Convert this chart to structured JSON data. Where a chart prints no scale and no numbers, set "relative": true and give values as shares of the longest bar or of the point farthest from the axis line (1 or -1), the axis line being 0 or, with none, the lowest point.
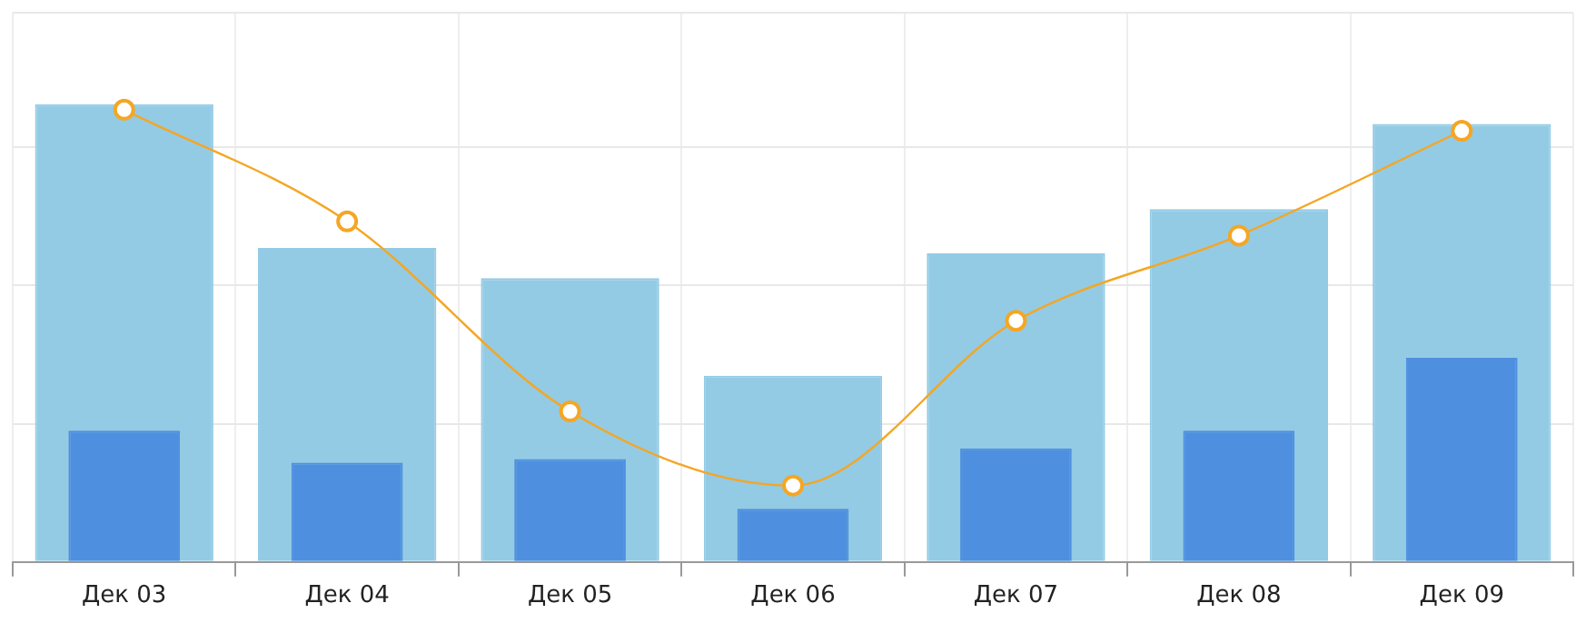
{
  "chart_data": {
    "type": "bar",
    "relative": true,
    "grid": true,
    "marker": "circle",
    "line_style": "solid",
    "categories": [
      "Дек 03",
      "Дек 04",
      "Дек 05",
      "Дек 06",
      "Дек 07",
      "Дек 08",
      "Дек 09"
    ],
    "series": [
      {
        "type": "line",
        "color": "#f5a623",
        "values": [
          0.988,
          0.744,
          0.329,
          0.167,
          0.527,
          0.713,
          0.942
        ]
      },
      {
        "color": "#4f8fdf",
        "values": [
          0.287,
          0.217,
          0.225,
          0.116,
          0.248,
          0.287,
          0.446
        ]
      },
      {
        "color": "#93cbe5",
        "values": [
          1,
          0.686,
          0.62,
          0.407,
          0.674,
          0.771,
          0.957
        ]
      }
    ]
  }
}
